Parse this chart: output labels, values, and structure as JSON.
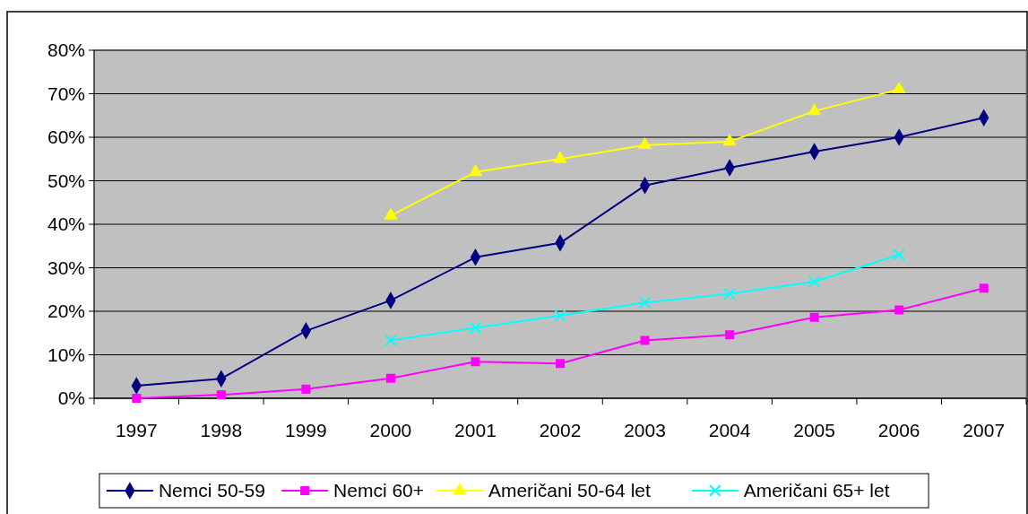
{
  "chart_data": {
    "type": "line",
    "categories": [
      "1997",
      "1998",
      "1999",
      "2000",
      "2001",
      "2002",
      "2003",
      "2004",
      "2005",
      "2006",
      "2007"
    ],
    "series": [
      {
        "name": "Nemci 50-59",
        "color": "#000080",
        "marker": "diamond",
        "values": [
          2.9,
          4.5,
          15.5,
          22.5,
          32.4,
          35.7,
          48.9,
          53,
          56.7,
          60,
          64.5
        ]
      },
      {
        "name": "Nemci 60+",
        "color": "#ff00ff",
        "marker": "square",
        "values": [
          0,
          0.8,
          2.1,
          4.6,
          8.4,
          8,
          13.3,
          14.6,
          18.6,
          20.3,
          25.3
        ]
      },
      {
        "name": "Američani 50-64 let",
        "color": "#ffff00",
        "marker": "triangle",
        "values": [
          null,
          null,
          null,
          42,
          52,
          55,
          58.2,
          59,
          66,
          71,
          null
        ]
      },
      {
        "name": "Američani 65+ let",
        "color": "#00ffff",
        "marker": "cross",
        "values": [
          null,
          null,
          null,
          13.3,
          16.2,
          19,
          22,
          24,
          26.8,
          33,
          null
        ]
      }
    ],
    "ylim": [
      0,
      80
    ],
    "yticks": [
      {
        "value": 0,
        "label": "0%"
      },
      {
        "value": 10,
        "label": "10%"
      },
      {
        "value": 20,
        "label": "20%"
      },
      {
        "value": 30,
        "label": "30%"
      },
      {
        "value": 40,
        "label": "40%"
      },
      {
        "value": 50,
        "label": "50%"
      },
      {
        "value": 60,
        "label": "60%"
      },
      {
        "value": 70,
        "label": "70%"
      },
      {
        "value": 80,
        "label": "80%"
      }
    ],
    "grid": "y",
    "legend": "bottom",
    "line_style": "solid"
  }
}
